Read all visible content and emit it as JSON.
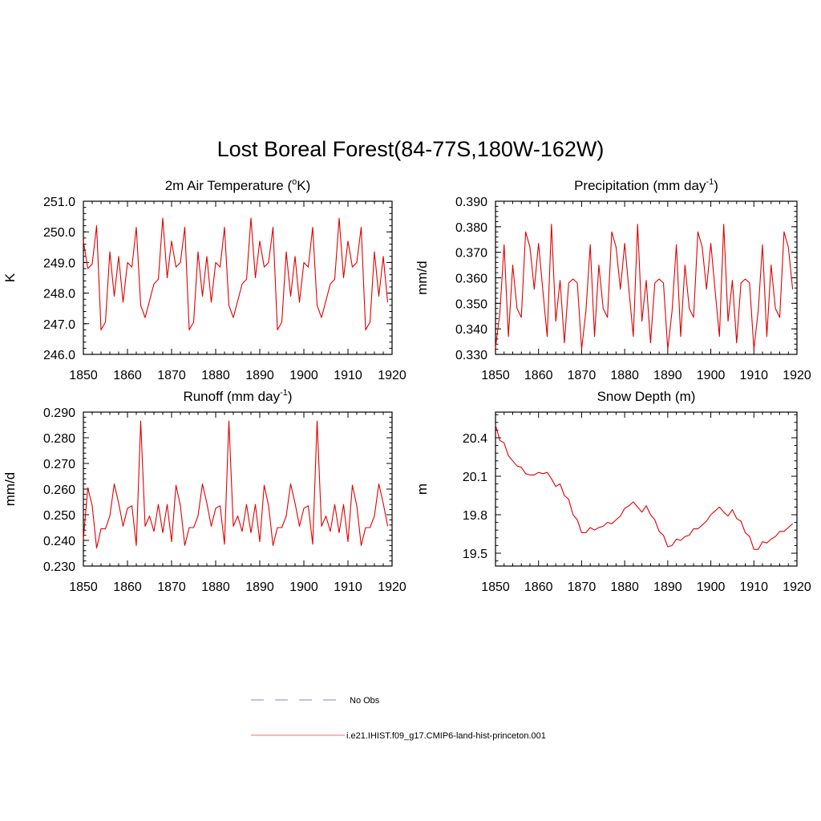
{
  "title": "Lost Boreal Forest(84-77S,180W-162W)",
  "legend": {
    "entries": [
      {
        "label": "No Obs",
        "color": "#9999ee",
        "dash": true
      },
      {
        "label": "i.e21.IHIST.f09_g17.CMIP6-land-hist-princeton.001",
        "color": "#ff8a8a",
        "dash": false
      }
    ]
  },
  "colors": {
    "series": "#e00000"
  },
  "chart_data": [
    {
      "type": "line",
      "title_main": "2m Air Temperature (",
      "title_sup": "o",
      "title_end": "K)",
      "ylabel": "K",
      "xlim": [
        1850,
        1920
      ],
      "ylim": [
        246.0,
        251.0
      ],
      "yticks": [
        246.0,
        247.0,
        248.0,
        249.0,
        250.0,
        251.0
      ],
      "ytick_labels": [
        "246.0",
        "247.0",
        "248.0",
        "249.0",
        "250.0",
        "251.0"
      ],
      "xticks": [
        1850,
        1860,
        1870,
        1880,
        1890,
        1900,
        1910,
        1920
      ],
      "x_start": 1850,
      "values": [
        249.7,
        248.8,
        248.95,
        250.2,
        246.8,
        247.05,
        249.35,
        247.9,
        249.2,
        247.7,
        249.0,
        248.85,
        250.15,
        247.6,
        247.2,
        247.75,
        248.3,
        248.45,
        250.45,
        248.5,
        249.7,
        248.85,
        249.0,
        250.15,
        246.8,
        247.05,
        249.35,
        247.9,
        249.2,
        247.7,
        249.0,
        248.85,
        250.15,
        247.6,
        247.2,
        247.75,
        248.3,
        248.45,
        250.45,
        248.5,
        249.7,
        248.85,
        249.0,
        250.15,
        246.8,
        247.05,
        249.35,
        247.9,
        249.2,
        247.7,
        249.0,
        248.85,
        250.15,
        247.6,
        247.2,
        247.75,
        248.3,
        248.45,
        250.45,
        248.5,
        249.7,
        248.85,
        249.0,
        250.15,
        246.8,
        247.05,
        249.35,
        247.9,
        249.2,
        247.7
      ]
    },
    {
      "type": "line",
      "title_main": "Precipitation (mm day",
      "title_sup": "-1",
      "title_end": ")",
      "ylabel": "mm/d",
      "xlim": [
        1850,
        1920
      ],
      "ylim": [
        0.33,
        0.39
      ],
      "yticks": [
        0.33,
        0.34,
        0.35,
        0.36,
        0.37,
        0.38,
        0.39
      ],
      "ytick_labels": [
        "0.330",
        "0.340",
        "0.350",
        "0.360",
        "0.370",
        "0.380",
        "0.390"
      ],
      "xticks": [
        1850,
        1860,
        1870,
        1880,
        1890,
        1900,
        1910,
        1920
      ],
      "x_start": 1850,
      "values": [
        0.3325,
        0.346,
        0.373,
        0.337,
        0.365,
        0.348,
        0.3445,
        0.378,
        0.372,
        0.3555,
        0.3735,
        0.355,
        0.337,
        0.381,
        0.343,
        0.359,
        0.3345,
        0.358,
        0.3595,
        0.358,
        0.332,
        0.347,
        0.373,
        0.337,
        0.365,
        0.348,
        0.3445,
        0.378,
        0.372,
        0.3555,
        0.3735,
        0.355,
        0.337,
        0.381,
        0.343,
        0.359,
        0.3345,
        0.358,
        0.3595,
        0.358,
        0.332,
        0.347,
        0.373,
        0.337,
        0.365,
        0.348,
        0.3445,
        0.378,
        0.372,
        0.3555,
        0.3735,
        0.355,
        0.337,
        0.381,
        0.343,
        0.359,
        0.3345,
        0.358,
        0.3595,
        0.358,
        0.332,
        0.347,
        0.373,
        0.337,
        0.365,
        0.348,
        0.3445,
        0.378,
        0.372,
        0.3555
      ]
    },
    {
      "type": "line",
      "title_main": "Runoff (mm day",
      "title_sup": "-1",
      "title_end": ")",
      "ylabel": "mm/d",
      "xlim": [
        1850,
        1920
      ],
      "ylim": [
        0.23,
        0.29
      ],
      "yticks": [
        0.23,
        0.24,
        0.25,
        0.26,
        0.27,
        0.28,
        0.29
      ],
      "ytick_labels": [
        "0.230",
        "0.240",
        "0.250",
        "0.260",
        "0.270",
        "0.280",
        "0.290"
      ],
      "xticks": [
        1850,
        1860,
        1870,
        1880,
        1890,
        1900,
        1910,
        1920
      ],
      "x_start": 1850,
      "values": [
        0.2405,
        0.2605,
        0.2535,
        0.237,
        0.2445,
        0.2445,
        0.2495,
        0.262,
        0.2545,
        0.2455,
        0.2525,
        0.2535,
        0.238,
        0.2865,
        0.2455,
        0.2495,
        0.2435,
        0.254,
        0.243,
        0.254,
        0.2395,
        0.2615,
        0.2535,
        0.238,
        0.245,
        0.245,
        0.2495,
        0.262,
        0.2545,
        0.2455,
        0.2525,
        0.2535,
        0.2385,
        0.2865,
        0.2455,
        0.2495,
        0.2435,
        0.254,
        0.243,
        0.254,
        0.2395,
        0.2615,
        0.2535,
        0.238,
        0.245,
        0.245,
        0.2495,
        0.262,
        0.2545,
        0.2455,
        0.2525,
        0.2535,
        0.2385,
        0.2865,
        0.2455,
        0.2495,
        0.2435,
        0.254,
        0.243,
        0.254,
        0.2395,
        0.2615,
        0.2535,
        0.238,
        0.245,
        0.245,
        0.2495,
        0.262,
        0.2545,
        0.2455
      ]
    },
    {
      "type": "line",
      "title_main": "Snow Depth (m)",
      "title_sup": "",
      "title_end": "",
      "ylabel": "m",
      "xlim": [
        1850,
        1920
      ],
      "ylim": [
        19.4,
        20.6
      ],
      "yticks": [
        19.5,
        19.8,
        20.1,
        20.4
      ],
      "ytick_labels": [
        "19.5",
        "19.8",
        "20.1",
        "20.4"
      ],
      "xticks": [
        1850,
        1860,
        1870,
        1880,
        1890,
        1900,
        1910,
        1920
      ],
      "x_start": 1850,
      "values": [
        20.5,
        20.38,
        20.36,
        20.26,
        20.22,
        20.18,
        20.17,
        20.12,
        20.11,
        20.11,
        20.13,
        20.12,
        20.13,
        20.08,
        20.02,
        20.04,
        19.95,
        19.92,
        19.8,
        19.76,
        19.66,
        19.66,
        19.7,
        19.68,
        19.7,
        19.71,
        19.74,
        19.73,
        19.76,
        19.79,
        19.85,
        19.87,
        19.9,
        19.86,
        19.82,
        19.87,
        19.8,
        19.76,
        19.67,
        19.64,
        19.55,
        19.56,
        19.61,
        19.6,
        19.63,
        19.64,
        19.69,
        19.69,
        19.72,
        19.75,
        19.8,
        19.83,
        19.86,
        19.82,
        19.79,
        19.84,
        19.77,
        19.75,
        19.66,
        19.63,
        19.53,
        19.53,
        19.59,
        19.58,
        19.61,
        19.63,
        19.67,
        19.67,
        19.7,
        19.73
      ]
    }
  ]
}
